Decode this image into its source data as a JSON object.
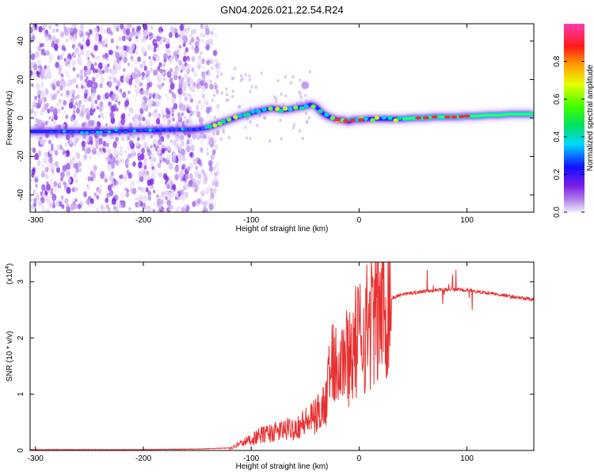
{
  "title": "GN04.2026.021.22.54.R24",
  "chart_data": [
    {
      "type": "heatmap",
      "panel": "spectrogram",
      "xlabel": "Height of straight line (km)",
      "ylabel": "Frequency (Hz)",
      "xlim": [
        -305,
        162
      ],
      "ylim": [
        -49,
        49
      ],
      "x_ticks": [
        -300,
        -200,
        -100,
        0,
        100
      ],
      "x_tick_labels": [
        "-300",
        "-200",
        "-100",
        "0",
        "100"
      ],
      "y_ticks": [
        -40,
        -20,
        0,
        20,
        40
      ],
      "y_tick_labels": [
        "-40",
        "-20",
        "0",
        "20",
        "40"
      ],
      "ridge": {
        "x": [
          -305,
          -290,
          -280,
          -270,
          -250,
          -230,
          -210,
          -190,
          -170,
          -150,
          -140,
          -130,
          -120,
          -110,
          -100,
          -90,
          -80,
          -70,
          -60,
          -50,
          -45,
          -40,
          -35,
          -30,
          -25,
          -20,
          -15,
          -10,
          -5,
          0,
          10,
          20,
          30,
          40,
          50,
          60,
          70,
          80,
          90,
          100,
          110,
          120,
          130,
          140,
          150,
          162
        ],
        "y": [
          -7,
          -7,
          -7,
          -7,
          -7,
          -7,
          -6.5,
          -6.5,
          -6,
          -6,
          -5,
          -3,
          -1,
          1,
          2.5,
          4,
          5,
          4,
          5,
          6,
          7,
          6,
          3,
          1,
          0,
          -1,
          -1,
          -2,
          -1,
          -1,
          -0.5,
          -0.5,
          -0.5,
          -0.5,
          0,
          0,
          0.5,
          0.5,
          0.5,
          1,
          1,
          1.5,
          1.5,
          2,
          2,
          2
        ]
      },
      "noise_region_x": [
        -305,
        -140
      ],
      "colorbar": {
        "label": "Normalized spectral amplitude",
        "range": [
          0,
          1
        ],
        "ticks": [
          0,
          0.2,
          0.4,
          0.6,
          0.8
        ],
        "tick_labels": [
          "0.0",
          "0.2",
          "0.4",
          "0.6",
          "0.8"
        ]
      }
    },
    {
      "type": "line",
      "panel": "snr",
      "xlabel": "Height of straight line (km)",
      "ylabel": "SNR (10 * v/v)",
      "y_multiplier": "(x10",
      "y_multiplier_exp": "4",
      "y_multiplier_close": ")",
      "xlim": [
        -305,
        162
      ],
      "ylim": [
        0,
        3.35
      ],
      "x_ticks": [
        -300,
        -200,
        -100,
        0,
        100
      ],
      "x_tick_labels": [
        "-300",
        "-200",
        "-100",
        "0",
        "100"
      ],
      "y_ticks": [
        0,
        1,
        2,
        3
      ],
      "y_tick_labels": [
        "0",
        "1",
        "2",
        "3"
      ],
      "color": "#e8302f",
      "series": [
        {
          "name": "SNR",
          "x": [
            -305,
            -250,
            -200,
            -150,
            -120,
            -110,
            -100,
            -90,
            -80,
            -70,
            -60,
            -50,
            -40,
            -30,
            -25,
            -20,
            -15,
            -10,
            -5,
            0,
            10,
            20,
            30,
            40,
            50,
            60,
            70,
            80,
            90,
            100,
            110,
            120,
            130,
            140,
            150,
            162
          ],
          "values": [
            0.01,
            0.01,
            0.01,
            0.02,
            0.04,
            0.12,
            0.2,
            0.28,
            0.32,
            0.36,
            0.4,
            0.5,
            0.6,
            0.9,
            1.7,
            1.6,
            1.65,
            1.7,
            1.85,
            2.0,
            2.3,
            2.5,
            2.7,
            2.78,
            2.8,
            2.83,
            2.85,
            2.86,
            2.86,
            2.85,
            2.82,
            2.8,
            2.77,
            2.74,
            2.71,
            2.68
          ]
        }
      ]
    }
  ]
}
